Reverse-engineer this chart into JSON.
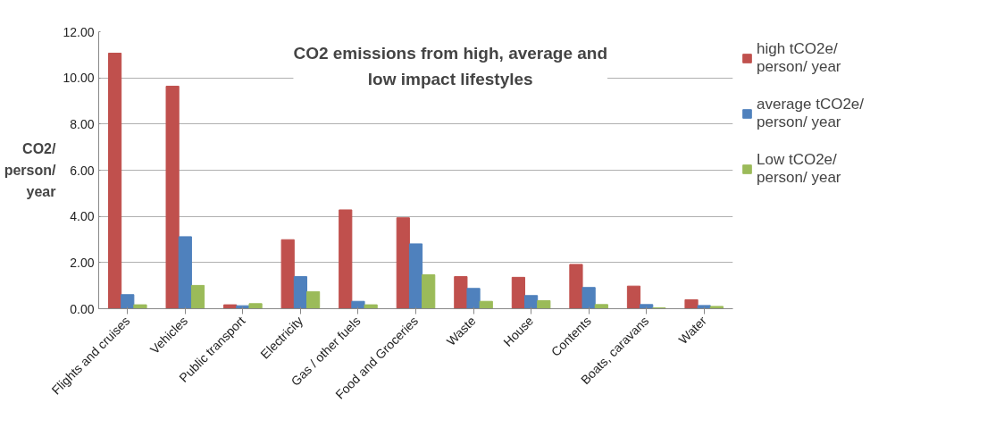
{
  "chart_data": {
    "type": "bar",
    "title": "CO2 emissions from high, average and low impact lifestyles",
    "ylabel": "CO2/ person/ year",
    "categories": [
      "Flights and cruises",
      "Vehicles",
      "Public transport",
      "Electricity",
      "Gas / other fuels",
      "Food and Groceries",
      "Waste",
      "House",
      "Contents",
      "Boats, caravans",
      "Water"
    ],
    "series": [
      {
        "name": "high tCO2e/ person/ year",
        "color": "#c0504d",
        "values": [
          11.07,
          9.64,
          0.17,
          2.99,
          4.28,
          3.94,
          1.39,
          1.36,
          1.92,
          0.98,
          0.39
        ]
      },
      {
        "name": "average tCO2e/ person/ year",
        "color": "#4f81bd",
        "values": [
          0.61,
          3.12,
          0.13,
          1.39,
          0.32,
          2.81,
          0.88,
          0.57,
          0.92,
          0.18,
          0.14
        ]
      },
      {
        "name": "Low tCO2e/ person/ year",
        "color": "#9bbb59",
        "values": [
          0.17,
          1.01,
          0.22,
          0.74,
          0.17,
          1.47,
          0.32,
          0.35,
          0.18,
          0.04,
          0.1
        ]
      }
    ],
    "ylim": [
      0,
      12
    ],
    "yticks": [
      {
        "value": 0,
        "label": "0.00"
      },
      {
        "value": 2,
        "label": "2.00"
      },
      {
        "value": 4,
        "label": "4.00"
      },
      {
        "value": 6,
        "label": "6.00"
      },
      {
        "value": 8,
        "label": "8.00"
      },
      {
        "value": 10,
        "label": "10.00"
      },
      {
        "value": 12,
        "label": "12.00"
      }
    ],
    "grid": "y",
    "legend": "right"
  }
}
